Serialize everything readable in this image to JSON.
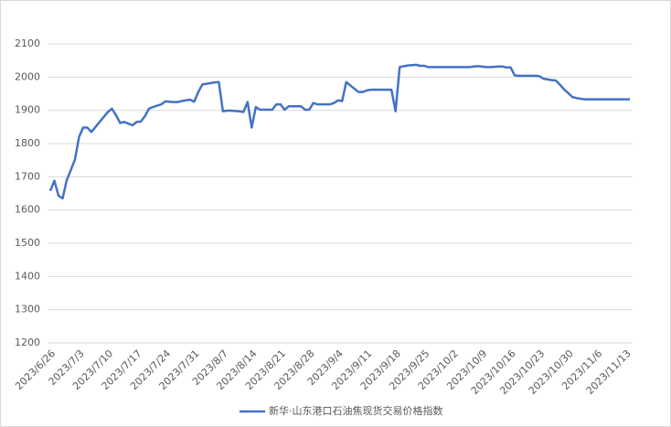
{
  "chart_data": {
    "type": "line",
    "categories": [
      "2023/6/26",
      null,
      null,
      null,
      null,
      null,
      null,
      "2023/7/3",
      null,
      null,
      null,
      null,
      null,
      null,
      "2023/7/10",
      null,
      null,
      null,
      null,
      null,
      null,
      "2023/7/17",
      null,
      null,
      null,
      null,
      null,
      null,
      "2023/7/24",
      null,
      null,
      null,
      null,
      null,
      null,
      "2023/7/31",
      null,
      null,
      null,
      null,
      null,
      null,
      "2023/8/7",
      null,
      null,
      null,
      null,
      null,
      null,
      "2023/8/14",
      null,
      null,
      null,
      null,
      null,
      null,
      "2023/8/21",
      null,
      null,
      null,
      null,
      null,
      null,
      "2023/8/28",
      null,
      null,
      null,
      null,
      null,
      null,
      "2023/9/4",
      null,
      null,
      null,
      null,
      null,
      null,
      "2023/9/11",
      null,
      null,
      null,
      null,
      null,
      null,
      "2023/9/18",
      null,
      null,
      null,
      null,
      null,
      null,
      "2023/9/25",
      null,
      null,
      null,
      null,
      null,
      null,
      "2023/10/2",
      null,
      null,
      null,
      null,
      null,
      null,
      "2023/10/9",
      null,
      null,
      null,
      null,
      null,
      null,
      "2023/10/16",
      null,
      null,
      null,
      null,
      null,
      null,
      "2023/10/23",
      null,
      null,
      null,
      null,
      null,
      null,
      "2023/10/30",
      null,
      null,
      null,
      null,
      null,
      null,
      "2023/11/6",
      null,
      null,
      null,
      null,
      null,
      null,
      "2023/11/13",
      null
    ],
    "series": [
      {
        "name": "新华·山东港口石油焦现货交易价格指数",
        "color": "#4472c4",
        "values": [
          1658,
          1688,
          1643,
          1635,
          1690,
          1720,
          1752,
          1820,
          1848,
          1848,
          1835,
          1850,
          1865,
          1880,
          1895,
          1905,
          1885,
          1862,
          1865,
          1860,
          1855,
          1865,
          1866,
          1882,
          1905,
          1910,
          1914,
          1918,
          1927,
          1926,
          1925,
          1925,
          1928,
          1930,
          1932,
          1926,
          1955,
          1978,
          1980,
          1982,
          1984,
          1985,
          1897,
          1899,
          1899,
          1898,
          1897,
          1895,
          1925,
          1848,
          1910,
          1902,
          1902,
          1902,
          1902,
          1918,
          1918,
          1902,
          1912,
          1912,
          1912,
          1912,
          1902,
          1902,
          1922,
          1918,
          1918,
          1918,
          1918,
          1922,
          1930,
          1928,
          1985,
          1975,
          1965,
          1955,
          1955,
          1960,
          1962,
          1962,
          1962,
          1962,
          1962,
          1962,
          1897,
          2030,
          2033,
          2035,
          2036,
          2037,
          2034,
          2034,
          2030,
          2030,
          2030,
          2030,
          2030,
          2030,
          2030,
          2030,
          2030,
          2030,
          2030,
          2032,
          2033,
          2032,
          2030,
          2030,
          2031,
          2032,
          2032,
          2029,
          2029,
          2005,
          2004,
          2004,
          2004,
          2004,
          2004,
          2003,
          1995,
          1993,
          1991,
          1990,
          1977,
          1963,
          1952,
          1940,
          1937,
          1935,
          1933,
          1933,
          1933,
          1933,
          1933,
          1933,
          1933,
          1933,
          1933,
          1933,
          1933,
          1933
        ]
      }
    ],
    "ylim": [
      1200,
      2100
    ],
    "yticks": [
      1200,
      1300,
      1400,
      1500,
      1600,
      1700,
      1800,
      1900,
      2000,
      2100
    ],
    "grid": true,
    "legend": "bottom"
  }
}
